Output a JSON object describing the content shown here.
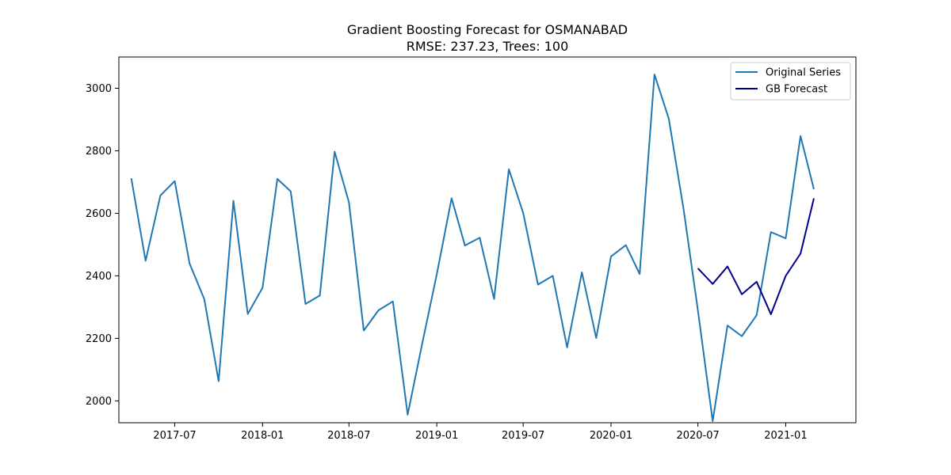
{
  "chart_data": {
    "type": "line",
    "title": "Gradient Boosting Forecast for OSMANABAD",
    "subtitle": "RMSE: 237.23, Trees: 100",
    "xlabel": "",
    "ylabel": "",
    "x_ticks": [
      "2017-07",
      "2018-01",
      "2018-07",
      "2019-01",
      "2019-07",
      "2020-01",
      "2020-07",
      "2021-01"
    ],
    "y_ticks": [
      2000,
      2200,
      2400,
      2600,
      2800,
      3000
    ],
    "xlim": [
      "2017-03-06",
      "2021-05-28"
    ],
    "ylim": [
      1930,
      3100
    ],
    "grid": false,
    "legend_position": "top-right",
    "series": [
      {
        "name": "Original Series",
        "color": "#1f77b4",
        "points": [
          [
            "2017-04-01",
            2712
          ],
          [
            "2017-05-01",
            2448
          ],
          [
            "2017-06-01",
            2657
          ],
          [
            "2017-07-01",
            2703
          ],
          [
            "2017-08-01",
            2440
          ],
          [
            "2017-09-01",
            2325
          ],
          [
            "2017-10-01",
            2063
          ],
          [
            "2017-11-01",
            2640
          ],
          [
            "2017-12-01",
            2278
          ],
          [
            "2018-01-01",
            2362
          ],
          [
            "2018-02-01",
            2710
          ],
          [
            "2018-03-01",
            2670
          ],
          [
            "2018-04-01",
            2310
          ],
          [
            "2018-05-01",
            2337
          ],
          [
            "2018-06-01",
            2797
          ],
          [
            "2018-07-01",
            2635
          ],
          [
            "2018-08-01",
            2225
          ],
          [
            "2018-09-01",
            2290
          ],
          [
            "2018-10-01",
            2318
          ],
          [
            "2018-11-01",
            1956
          ],
          [
            "2018-12-01",
            2180
          ],
          [
            "2019-01-01",
            2405
          ],
          [
            "2019-02-01",
            2648
          ],
          [
            "2019-03-01",
            2497
          ],
          [
            "2019-04-01",
            2522
          ],
          [
            "2019-05-01",
            2326
          ],
          [
            "2019-06-01",
            2741
          ],
          [
            "2019-07-01",
            2601
          ],
          [
            "2019-08-01",
            2372
          ],
          [
            "2019-09-01",
            2400
          ],
          [
            "2019-10-01",
            2171
          ],
          [
            "2019-11-01",
            2411
          ],
          [
            "2019-12-01",
            2201
          ],
          [
            "2020-01-01",
            2462
          ],
          [
            "2020-02-01",
            2498
          ],
          [
            "2020-03-01",
            2406
          ],
          [
            "2020-04-01",
            3044
          ],
          [
            "2020-05-01",
            2903
          ],
          [
            "2020-06-01",
            2613
          ],
          [
            "2020-07-01",
            2290
          ],
          [
            "2020-08-01",
            1935
          ],
          [
            "2020-09-01",
            2241
          ],
          [
            "2020-10-01",
            2207
          ],
          [
            "2020-11-01",
            2274
          ],
          [
            "2020-12-01",
            2540
          ],
          [
            "2021-01-01",
            2520
          ],
          [
            "2021-02-01",
            2847
          ],
          [
            "2021-03-01",
            2677
          ]
        ]
      },
      {
        "name": "GB Forecast",
        "color": "#00008b",
        "points": [
          [
            "2020-07-01",
            2424
          ],
          [
            "2020-08-01",
            2374
          ],
          [
            "2020-09-01",
            2430
          ],
          [
            "2020-10-01",
            2341
          ],
          [
            "2020-11-01",
            2381
          ],
          [
            "2020-12-01",
            2277
          ],
          [
            "2021-01-01",
            2400
          ],
          [
            "2021-02-01",
            2471
          ],
          [
            "2021-03-01",
            2648
          ]
        ]
      }
    ]
  }
}
